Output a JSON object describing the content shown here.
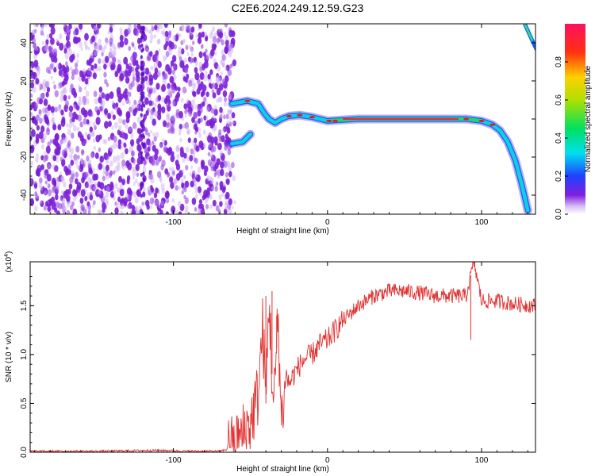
{
  "title": "C2E6.2024.249.12.59.G23",
  "chart_data": [
    {
      "type": "heatmap",
      "xlabel": "Height of straight line (km)",
      "ylabel": "Frequency (Hz)",
      "xlim": [
        -193,
        135
      ],
      "ylim": [
        -50,
        50
      ],
      "xticks": [
        -100,
        0,
        100
      ],
      "yticks": [
        -40,
        -20,
        0,
        20,
        40
      ],
      "colorbar": {
        "label": "Normalized spectral amplitude",
        "range": [
          0,
          1
        ],
        "ticks": [
          0.0,
          0.2,
          0.4,
          0.6,
          0.8
        ]
      },
      "noise_region_x": [
        -193,
        -60
      ],
      "ridge": [
        {
          "x": -62,
          "f": -13
        },
        {
          "x": -55,
          "f": -12
        },
        {
          "x": -50,
          "f": -8
        },
        {
          "x": -62,
          "f": 8
        },
        {
          "x": -52,
          "f": 9.5
        },
        {
          "x": -45,
          "f": 8
        },
        {
          "x": -41,
          "f": 3
        },
        {
          "x": -38,
          "f": 0
        },
        {
          "x": -34,
          "f": -2
        },
        {
          "x": -30,
          "f": 0
        },
        {
          "x": -25,
          "f": 1.5
        },
        {
          "x": -18,
          "f": 2
        },
        {
          "x": -10,
          "f": 1
        },
        {
          "x": -5,
          "f": 0
        },
        {
          "x": 0,
          "f": -1
        },
        {
          "x": 20,
          "f": 0
        },
        {
          "x": 60,
          "f": 0
        },
        {
          "x": 90,
          "f": 0
        },
        {
          "x": 100,
          "f": -1
        },
        {
          "x": 107,
          "f": -3
        },
        {
          "x": 112,
          "f": -6
        },
        {
          "x": 117,
          "f": -12
        },
        {
          "x": 122,
          "f": -22
        },
        {
          "x": 126,
          "f": -34
        },
        {
          "x": 130,
          "f": -48
        }
      ]
    },
    {
      "type": "line",
      "xlabel": "Height of straight line (km)",
      "ylabel": "SNR (10 * v/v)",
      "y_multiplier": "(x10",
      "y_multiplier_exp": "4",
      "y_multiplier_close": ")",
      "xlim": [
        -193,
        135
      ],
      "ylim": [
        0,
        1.95
      ],
      "xticks": [
        -100,
        0,
        100
      ],
      "yticks": [
        "0.0",
        "0.5",
        "1.0",
        "1.5"
      ],
      "line_color": "#e03030",
      "series": [
        {
          "x": [
            -193,
            -150,
            -110,
            -90,
            -70,
            -60,
            -50,
            -45,
            -42,
            -40,
            -38,
            -35,
            -32,
            -30,
            -27,
            -25,
            -20,
            -15,
            -10,
            -5,
            0,
            10,
            20,
            30,
            40,
            50,
            60,
            70,
            80,
            90,
            95,
            100,
            110,
            120,
            135
          ],
          "y": [
            0.01,
            0.01,
            0.02,
            0.01,
            0.01,
            0.05,
            0.3,
            0.6,
            1.3,
            0.5,
            1.6,
            0.4,
            1.4,
            0.3,
            0.8,
            0.7,
            0.85,
            0.95,
            1.0,
            1.1,
            1.15,
            1.35,
            1.5,
            1.6,
            1.65,
            1.65,
            1.63,
            1.6,
            1.6,
            1.6,
            1.95,
            1.55,
            1.55,
            1.52,
            1.5
          ]
        }
      ]
    }
  ]
}
